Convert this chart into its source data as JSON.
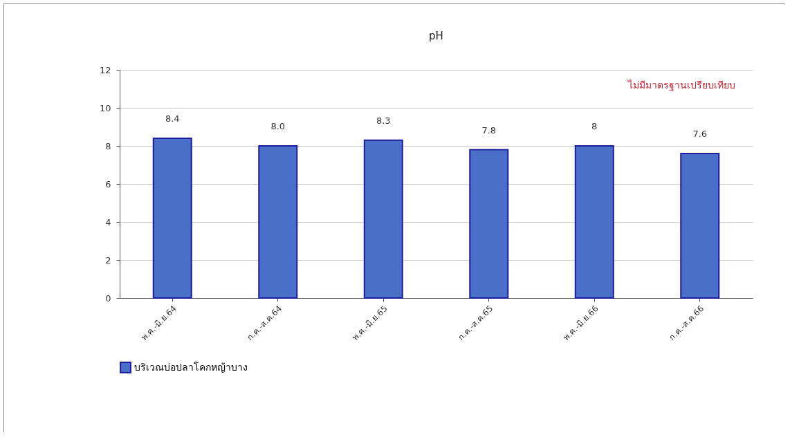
{
  "chart_data": {
    "type": "bar",
    "title": "pH",
    "categories": [
      "พ.ค.-มิ.ย.64",
      "ก.ค.-ส.ค.64",
      "พ.ค.-มิ.ย.65",
      "ก.ค.-ส.ค.65",
      "พ.ค.-มิ.ย.66",
      "ก.ค.-ส.ค.66"
    ],
    "series": [
      {
        "name": "บริเวณบ่อปลาโคกหญ้าบาง",
        "color": "#4a6fc9",
        "values": [
          8.4,
          8.0,
          8.3,
          7.8,
          8,
          7.6
        ],
        "value_labels": [
          "8.4",
          "8.0",
          "8.3",
          "7.8",
          "8",
          "7.6"
        ]
      }
    ],
    "ylim": [
      0,
      12
    ],
    "yticks": [
      0,
      2,
      4,
      6,
      8,
      10,
      12
    ],
    "grid": "y",
    "legend": "bottom",
    "annotations": [
      "ไม่มีมาตรฐานเปรียบเทียบ"
    ]
  }
}
